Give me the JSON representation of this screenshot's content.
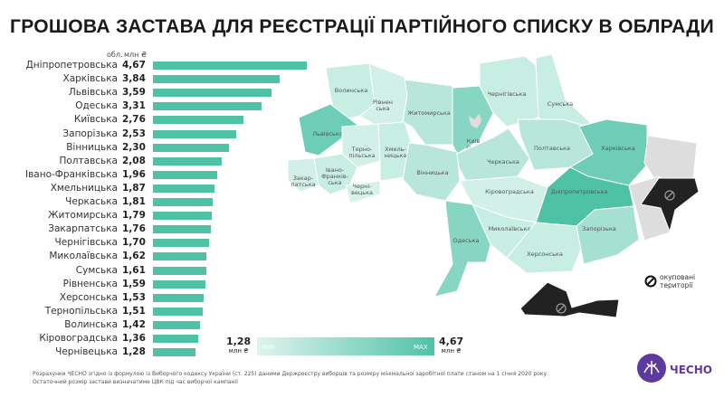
{
  "chart_data": {
    "type": "bar",
    "title": "ГРОШОВА ЗАСТАВА ДЛЯ РЕЄСТРАЦІЇ ПАРТІЙНОГО СПИСКУ В ОБЛРАДИ",
    "category_header": "обл.",
    "value_header": "млн ₴",
    "categories": [
      "Дніпропетровська",
      "Харківська",
      "Львівська",
      "Одеська",
      "Київська",
      "Запорізька",
      "Вінницька",
      "Полтавська",
      "Івано-Франківська",
      "Хмельницька",
      "Черкаська",
      "Житомирська",
      "Закарпатська",
      "Чернігівська",
      "Миколаївська",
      "Сумська",
      "Рівненська",
      "Херсонська",
      "Тернопільська",
      "Волинська",
      "Кіровоградська",
      "Чернівецька"
    ],
    "values": [
      4.67,
      3.84,
      3.59,
      3.31,
      2.76,
      2.53,
      2.3,
      2.08,
      1.96,
      1.87,
      1.81,
      1.79,
      1.76,
      1.7,
      1.62,
      1.61,
      1.59,
      1.53,
      1.51,
      1.42,
      1.36,
      1.28
    ],
    "value_labels": [
      "4,67",
      "3,84",
      "3,59",
      "3,31",
      "2,76",
      "2,53",
      "2,30",
      "2,08",
      "1,96",
      "1,87",
      "1,81",
      "1,79",
      "1,76",
      "1,70",
      "1,62",
      "1,61",
      "1,59",
      "1,53",
      "1,51",
      "1,42",
      "1,36",
      "1,28"
    ],
    "bar_color": "#4fc2a6"
  },
  "map": {
    "labels": {
      "volyn": "Волинська",
      "rivne1": "Рівнен",
      "rivne2": "ська",
      "zhytomyr": "Житомирська",
      "kyiv1": "Київ",
      "kyiv2": "ська",
      "chernihiv": "Чернігівська",
      "sumy": "Сумська",
      "lviv": "Львівська",
      "ternopil1": "Терно-",
      "ternopil2": "пільська",
      "khmel1": "Хмель-",
      "khmel2": "ницька",
      "vinnytsia": "Вінницька",
      "if1": "Івано-",
      "if2": "Франків-",
      "if3": "ська",
      "zakarp1": "Закар-",
      "zakarp2": "патська",
      "cherniv1": "Черні-",
      "cherniv2": "вецька",
      "cherkasy": "Черкаська",
      "poltava": "Полтавська",
      "kharkiv": "Харківська",
      "dnipro": "Дніпропетровська",
      "kirovohrad": "Кіровоградська",
      "mykolaiv": "Миколаївська",
      "odesa": "Одеська",
      "kherson": "Херсонська",
      "zaporizhzhia": "Запорізька"
    },
    "occupied_legend": [
      "окуповані",
      "території"
    ],
    "occupied_color": "#222222",
    "uncontrolled_color": "#dddddd"
  },
  "legend": {
    "min_value": "1,28",
    "max_value": "4,67",
    "unit": "млн ₴",
    "min_label": "MIN",
    "max_label": "MAX"
  },
  "footnote": [
    "Розрахунки ЧЕСНО згідно із формулою із Виборчого кодексу України (ст. 225) даними Держреєстру виборців та розміру мінімальної заробітної плати станом на 1 січня 2020 року.",
    "Остаточний розмір застави визначатиме ЦВК під час виборчої кампанії"
  ],
  "brand": "ЧЕСНО"
}
